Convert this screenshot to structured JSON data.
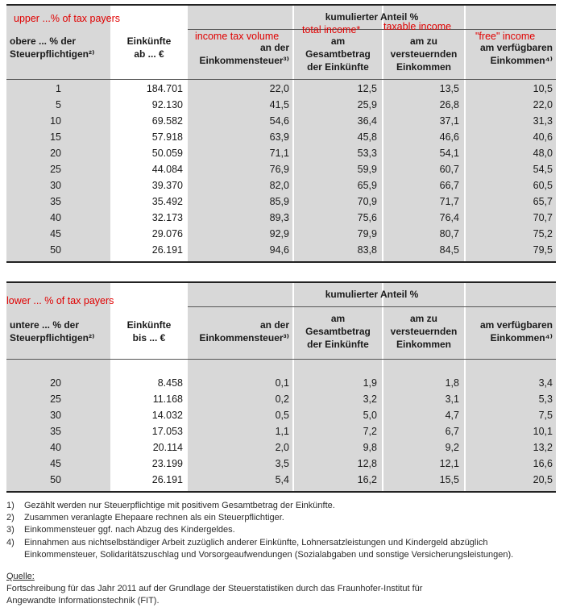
{
  "annotations": {
    "upper": "upper ...% of tax payers",
    "lower": "lower ... % of tax payers",
    "tax": "income tax volume",
    "total": "total income*",
    "taxable": "taxable income",
    "free": "\"free\" income"
  },
  "table_upper": {
    "group_header": "kumulierter Anteil %",
    "headers": {
      "c1": [
        "obere ... % der",
        "Steuerpflichtigen²⁾"
      ],
      "c2": [
        "Einkünfte",
        "ab ... €"
      ],
      "c3": [
        "an der",
        "Einkommensteuer³⁾"
      ],
      "c4": [
        "am",
        "Gesamtbetrag",
        "der Einkünfte"
      ],
      "c5": [
        "am zu",
        "versteuernden",
        "Einkommen"
      ],
      "c6": [
        "am verfügbaren",
        "Einkommen⁴⁾"
      ]
    },
    "rows": [
      [
        "1",
        "184.701",
        "22,0",
        "12,5",
        "13,5",
        "10,5"
      ],
      [
        "5",
        "92.130",
        "41,5",
        "25,9",
        "26,8",
        "22,0"
      ],
      [
        "10",
        "69.582",
        "54,6",
        "36,4",
        "37,1",
        "31,3"
      ],
      [
        "15",
        "57.918",
        "63,9",
        "45,8",
        "46,6",
        "40,6"
      ],
      [
        "20",
        "50.059",
        "71,1",
        "53,3",
        "54,1",
        "48,0"
      ],
      [
        "25",
        "44.084",
        "76,9",
        "59,9",
        "60,7",
        "54,5"
      ],
      [
        "30",
        "39.370",
        "82,0",
        "65,9",
        "66,7",
        "60,5"
      ],
      [
        "35",
        "35.492",
        "85,9",
        "70,9",
        "71,7",
        "65,7"
      ],
      [
        "40",
        "32.173",
        "89,3",
        "75,6",
        "76,4",
        "70,7"
      ],
      [
        "45",
        "29.076",
        "92,9",
        "79,9",
        "80,7",
        "75,2"
      ],
      [
        "50",
        "26.191",
        "94,6",
        "83,8",
        "84,5",
        "79,5"
      ]
    ]
  },
  "table_lower": {
    "group_header": "kumulierter Anteil %",
    "headers": {
      "c1": [
        "untere ... % der",
        "Steuerpflichtigen²⁾"
      ],
      "c2": [
        "Einkünfte",
        "bis ... €"
      ],
      "c3": [
        "an der",
        "Einkommensteuer³⁾"
      ],
      "c4": [
        "am",
        "Gesamtbetrag",
        "der Einkünfte"
      ],
      "c5": [
        "am zu",
        "versteuernden",
        "Einkommen"
      ],
      "c6": [
        "am verfügbaren",
        "Einkommen⁴⁾"
      ]
    },
    "rows": [
      [
        "20",
        "8.458",
        "0,1",
        "1,9",
        "1,8",
        "3,4"
      ],
      [
        "25",
        "11.168",
        "0,2",
        "3,2",
        "3,1",
        "5,3"
      ],
      [
        "30",
        "14.032",
        "0,5",
        "5,0",
        "4,7",
        "7,5"
      ],
      [
        "35",
        "17.053",
        "1,1",
        "7,2",
        "6,7",
        "10,1"
      ],
      [
        "40",
        "20.114",
        "2,0",
        "9,8",
        "9,2",
        "13,2"
      ],
      [
        "45",
        "23.199",
        "3,5",
        "12,8",
        "12,1",
        "16,6"
      ],
      [
        "50",
        "26.191",
        "5,4",
        "16,2",
        "15,5",
        "20,5"
      ]
    ]
  },
  "footnotes": [
    {
      "num": "1)",
      "text": "Gezählt werden nur Steuerpflichtige mit positivem Gesamtbetrag der Einkünfte."
    },
    {
      "num": "2)",
      "text": "Zusammen veranlagte Ehepaare rechnen als ein Steuerpflichtiger."
    },
    {
      "num": "3)",
      "text": "Einkommensteuer ggf. nach Abzug des Kindergeldes."
    },
    {
      "num": "4)",
      "text": "Einnahmen aus nichtselbständiger Arbeit zuzüglich anderer Einkünfte, Lohnersatzleistungen und Kindergeld abzüglich Einkommensteuer, Solidaritätszuschlag und Vorsorgeaufwendungen (Sozialabgaben und sonstige Versicherungsleistungen)."
    }
  ],
  "source": {
    "label": "Quelle:",
    "text": "Fortschreibung für das Jahr 2011 auf der Grundlage der Steuerstatistiken durch das Fraunhofer-Institut für Angewandte Informationstechnik (FIT)."
  }
}
